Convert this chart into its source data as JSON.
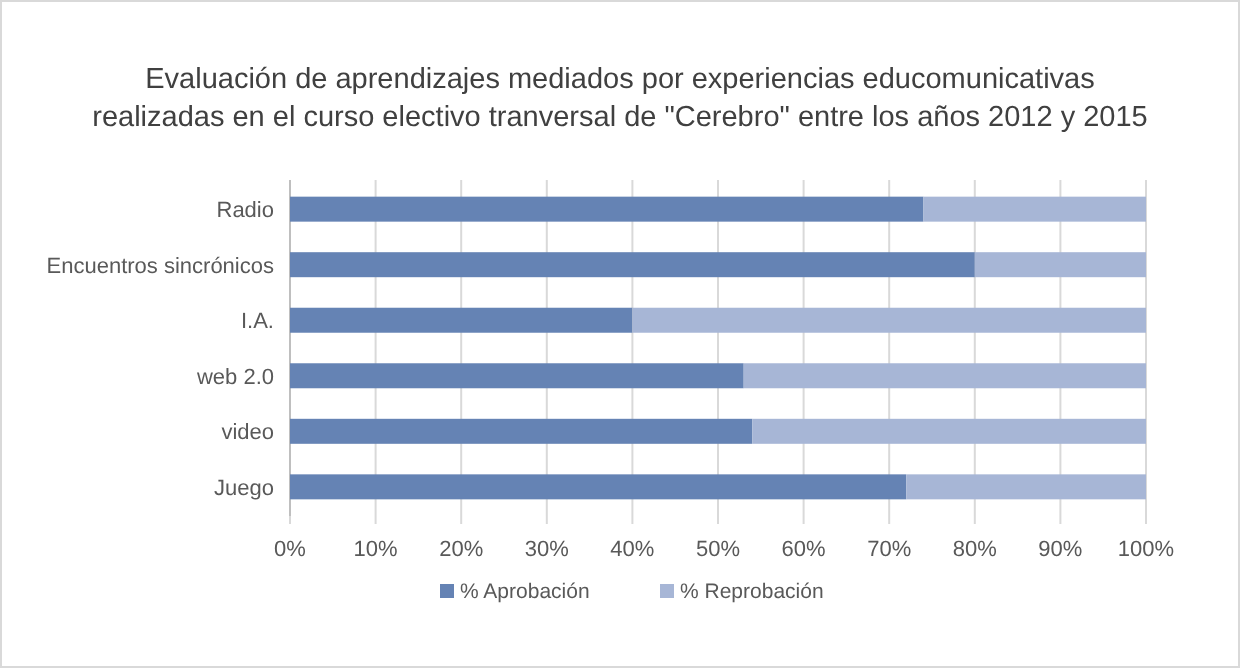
{
  "chart_data": {
    "type": "bar",
    "orientation": "horizontal",
    "stacked": true,
    "title": "Evaluación de aprendizajes mediados por experiencias educomunicativas\nrealizadas en el curso electivo tranversal de \"Cerebro\" entre los años 2012 y 2015",
    "categories": [
      "Radio",
      "Encuentros sincrónicos",
      "I.A.",
      "web 2.0",
      "video",
      "Juego"
    ],
    "series": [
      {
        "name": "% Aprobación",
        "color": "#6583b4",
        "values": [
          74,
          80,
          40,
          53,
          54,
          72
        ]
      },
      {
        "name": "% Reprobación",
        "color": "#a7b6d6",
        "values": [
          26,
          20,
          60,
          47,
          46,
          28
        ]
      }
    ],
    "xlim": [
      0,
      100
    ],
    "xticks": [
      {
        "value": 0,
        "label": "0%"
      },
      {
        "value": 10,
        "label": "10%"
      },
      {
        "value": 20,
        "label": "20%"
      },
      {
        "value": 30,
        "label": "30%"
      },
      {
        "value": 40,
        "label": "40%"
      },
      {
        "value": 50,
        "label": "50%"
      },
      {
        "value": 60,
        "label": "60%"
      },
      {
        "value": 70,
        "label": "70%"
      },
      {
        "value": 80,
        "label": "80%"
      },
      {
        "value": 90,
        "label": "90%"
      },
      {
        "value": 100,
        "label": "100%"
      }
    ],
    "grid": "x",
    "legend": "bottom"
  }
}
